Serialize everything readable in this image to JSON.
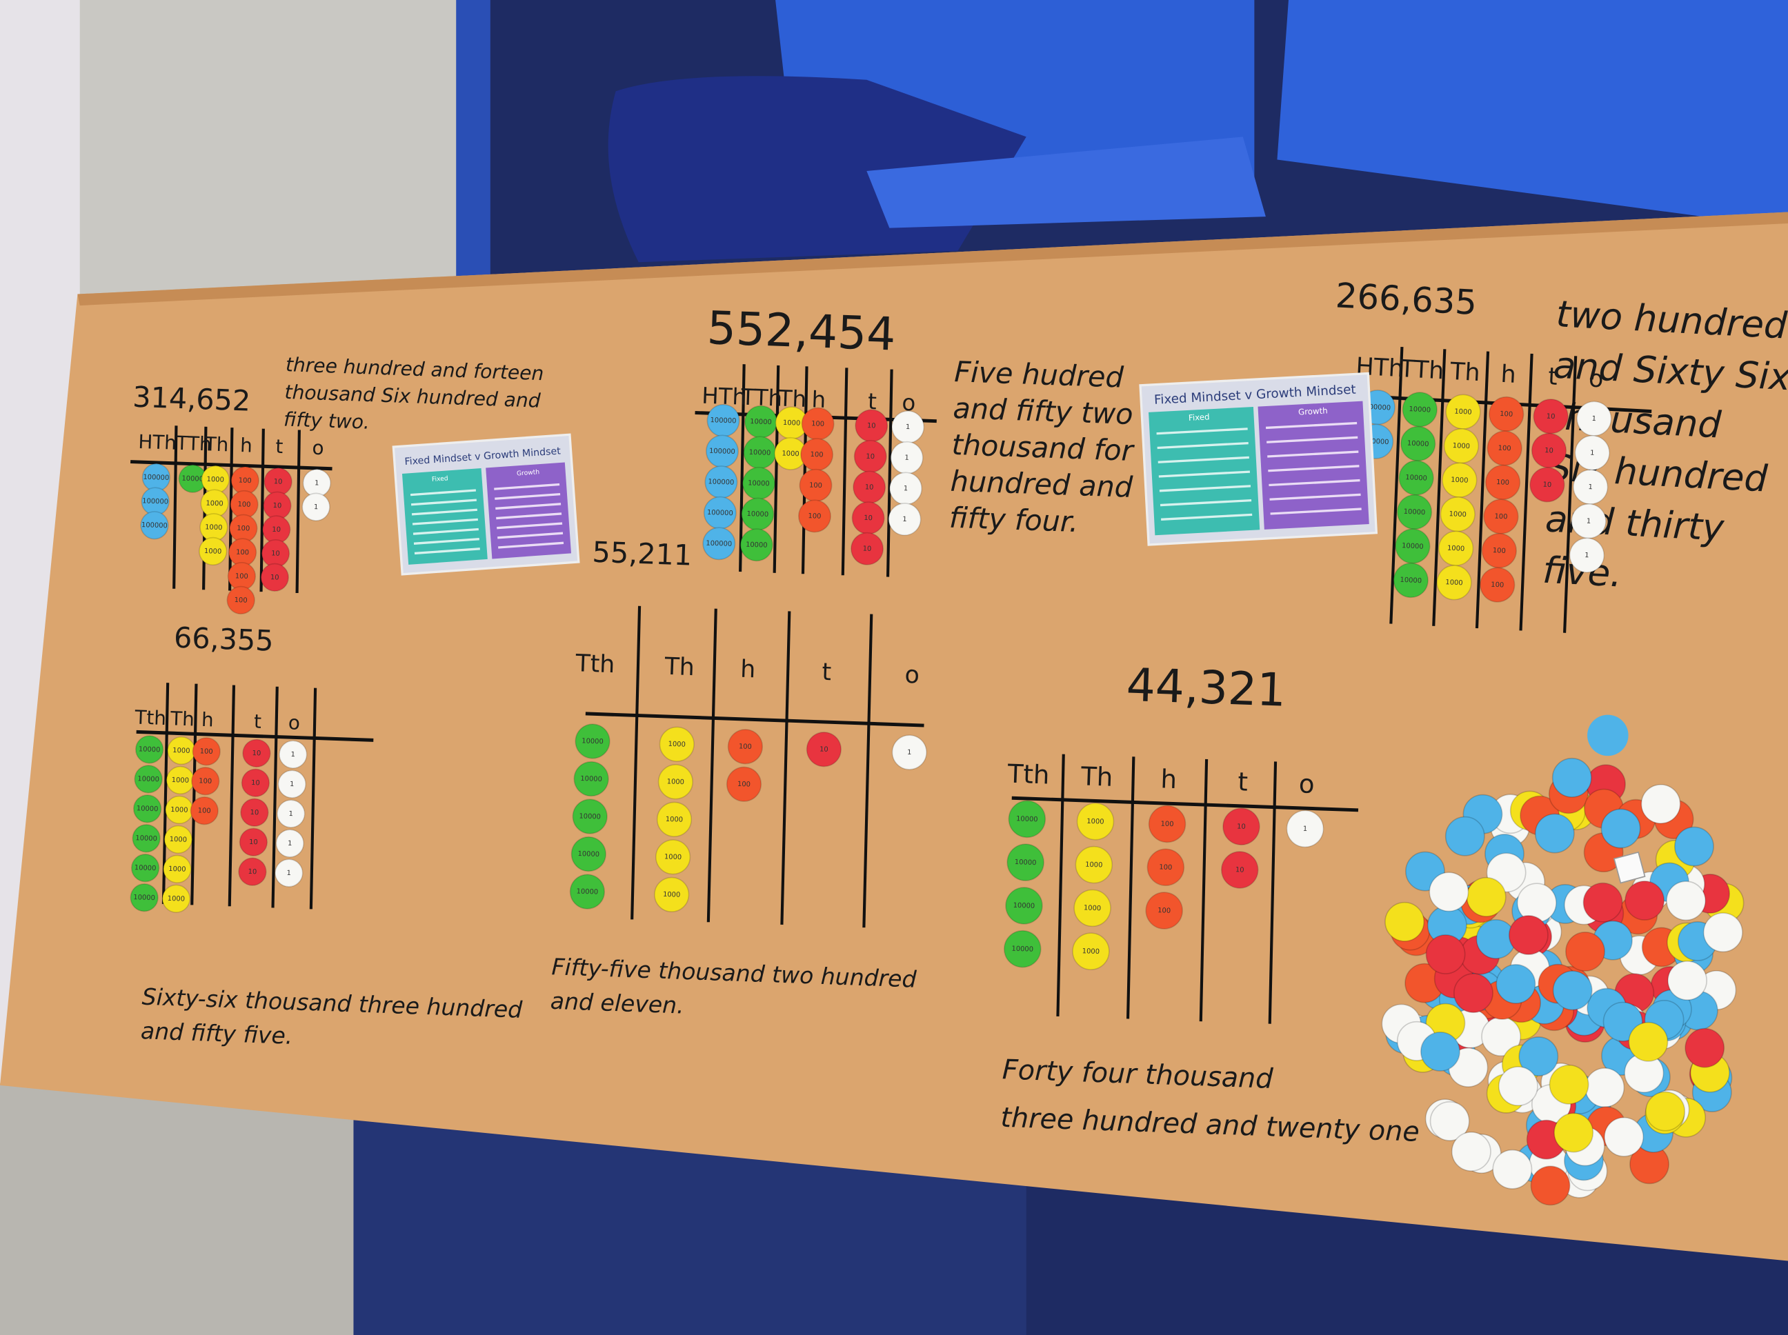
{
  "boards": [
    {
      "number": "314,652",
      "words": [
        "three hundred and forteen",
        "thousand Six hundred and",
        "fifty two."
      ],
      "headers": [
        "HTh",
        "TTh",
        "Th",
        "h",
        "t",
        "o"
      ],
      "columns": [
        [
          "100000",
          "100000",
          "100000"
        ],
        [
          "10000"
        ],
        [
          "1000",
          "1000",
          "1000",
          "1000"
        ],
        [
          "100",
          "100",
          "100",
          "100",
          "100",
          "100"
        ],
        [
          "10",
          "10",
          "10",
          "10",
          "10"
        ],
        [
          "1",
          "1"
        ]
      ]
    },
    {
      "number": "552,454",
      "words": [
        "Five hudred",
        "and fifty two",
        "thousand for",
        "hundred and",
        "fifty four."
      ],
      "headers": [
        "HTh",
        "TTh",
        "Th",
        "h",
        "t",
        "o"
      ],
      "columns": [
        [
          "100000",
          "100000",
          "100000",
          "100000",
          "100000"
        ],
        [
          "10000",
          "10000",
          "10000",
          "10000",
          "10000"
        ],
        [
          "1000",
          "1000"
        ],
        [
          "100",
          "100",
          "100",
          "100"
        ],
        [
          "10",
          "10",
          "10",
          "10",
          "10"
        ],
        [
          "1",
          "1",
          "1",
          "1"
        ]
      ]
    },
    {
      "number": "55,211",
      "words": [
        "Fifty-five thousand two hundred",
        "and eleven."
      ],
      "headers": [
        "Tth",
        "Th",
        "h",
        "t",
        "o"
      ],
      "columns": [
        [
          "10000",
          "10000",
          "10000",
          "10000",
          "10000"
        ],
        [
          "1000",
          "1000",
          "1000",
          "1000",
          "1000"
        ],
        [
          "100",
          "100"
        ],
        [
          "10"
        ],
        [
          "1"
        ]
      ]
    },
    {
      "number": "266,635",
      "words": [
        "two hundred",
        "and Sixty Six",
        "thousand",
        "Six hundred",
        "and thirty",
        "five."
      ],
      "headers": [
        "HTh",
        "TTh",
        "Th",
        "h",
        "t",
        "o"
      ],
      "columns": [
        [
          "100000",
          "100000"
        ],
        [
          "10000",
          "10000",
          "10000",
          "10000",
          "10000",
          "10000"
        ],
        [
          "1000",
          "1000",
          "1000",
          "1000",
          "1000",
          "1000"
        ],
        [
          "100",
          "100",
          "100",
          "100",
          "100",
          "100"
        ],
        [
          "10",
          "10",
          "10"
        ],
        [
          "1",
          "1",
          "1",
          "1",
          "1"
        ]
      ]
    },
    {
      "number": "66,355",
      "words": [
        "Sixty-six thousand three hundred",
        "and fifty five."
      ],
      "headers": [
        "Tth",
        "Th",
        "h",
        "t",
        "o"
      ],
      "columns": [
        [
          "10000",
          "10000",
          "10000",
          "10000",
          "10000",
          "10000"
        ],
        [
          "1000",
          "1000",
          "1000",
          "1000",
          "1000",
          "1000"
        ],
        [
          "100",
          "100",
          "100"
        ],
        [
          "10",
          "10",
          "10",
          "10",
          "10"
        ],
        [
          "1",
          "1",
          "1",
          "1",
          "1"
        ]
      ]
    },
    {
      "number": "44,321",
      "words": [
        "Forty four thousand",
        "three hundred and twenty one"
      ],
      "headers": [
        "Tth",
        "Th",
        "h",
        "t",
        "o"
      ],
      "columns": [
        [
          "10000",
          "10000",
          "10000",
          "10000"
        ],
        [
          "1000",
          "1000",
          "1000",
          "1000"
        ],
        [
          "100",
          "100",
          "100"
        ],
        [
          "10",
          "10"
        ],
        [
          "1"
        ]
      ]
    }
  ],
  "posters": [
    {
      "title": "Fixed Mindset v Growth Mindset",
      "left": "Fixed",
      "right": "Growth"
    },
    {
      "title": "Fixed Mindset v Growth Mindset",
      "left": "Fixed",
      "right": "Growth"
    }
  ]
}
